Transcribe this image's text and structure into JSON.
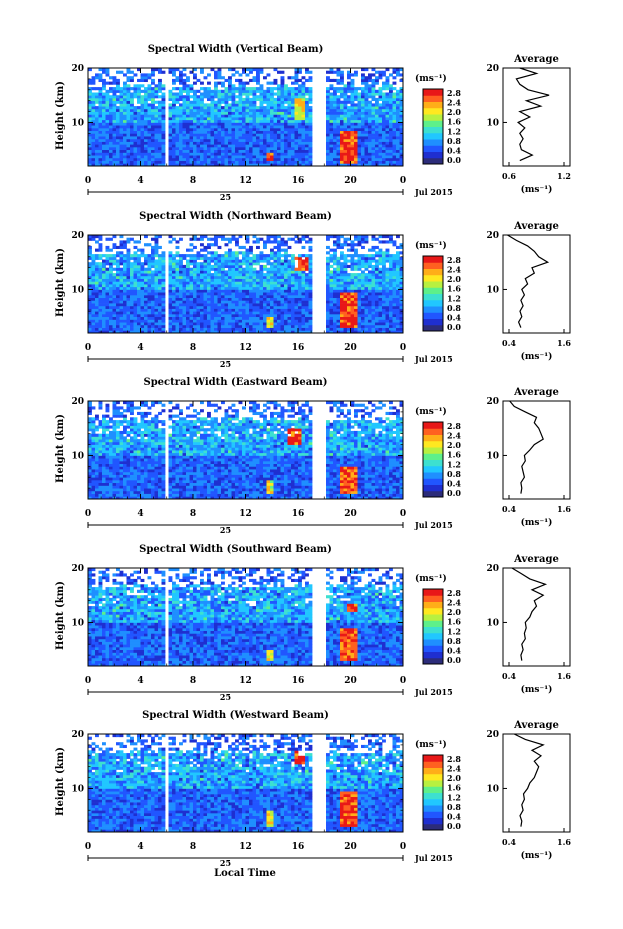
{
  "figure": {
    "xlabel": "Local Time",
    "month_label": "Jul 2015",
    "date_label": "25",
    "unit_label": "(ms⁻¹)",
    "ylabel": "Height (km)",
    "avg_title": "Average",
    "avg_xlabel": "(ms⁻¹)"
  },
  "chart_data": [
    {
      "type": "heatmap",
      "title": "Spectral Width (Vertical Beam)",
      "xlabel": "Local Time",
      "ylabel": "Height (km)",
      "x_ticks": [
        "0",
        "4",
        "8",
        "12",
        "16",
        "20",
        "0"
      ],
      "y_ticks": [
        "20",
        "10"
      ],
      "xlim": [
        0,
        24
      ],
      "ylim": [
        2,
        20
      ],
      "colorbar": {
        "label": "(ms⁻¹)",
        "ticks": [
          "2.8",
          "2.4",
          "2.0",
          "1.6",
          "1.2",
          "0.8",
          "0.4",
          "0.0"
        ],
        "range": [
          0.0,
          2.8
        ]
      },
      "data_gaps_hours": [
        [
          5.8,
          6.1
        ],
        [
          17.2,
          17.5
        ],
        [
          17.7,
          18.0
        ]
      ],
      "peak_regions": [
        {
          "t_start": 19.2,
          "t_end": 20.5,
          "h_start": 2.5,
          "h_end": 8.5,
          "level": "high"
        },
        {
          "t_start": 15.8,
          "t_end": 16.4,
          "h_start": 10.5,
          "h_end": 14.5,
          "level": "medium"
        },
        {
          "t_start": 13.7,
          "t_end": 14.1,
          "h_start": 2.8,
          "h_end": 4.5,
          "level": "high"
        }
      ],
      "average_profile": {
        "title": "Average",
        "xlabel": "(ms⁻¹)",
        "x_ticks": [
          "0.6",
          "1.2"
        ],
        "y_ticks": [
          "20",
          "10"
        ],
        "xlim": [
          0.5,
          1.3
        ],
        "height": [
          3,
          4,
          5,
          6,
          7,
          8,
          9,
          10,
          11,
          12,
          13,
          14,
          15,
          16,
          17,
          18,
          19,
          20
        ],
        "width": [
          0.7,
          0.85,
          0.72,
          0.7,
          0.74,
          0.7,
          0.76,
          0.68,
          0.82,
          0.7,
          0.95,
          0.78,
          1.05,
          0.8,
          0.7,
          0.66,
          0.9,
          0.7
        ]
      }
    },
    {
      "type": "heatmap",
      "title": "Spectral Width (Northward Beam)",
      "xlabel": "Local Time",
      "ylabel": "Height (km)",
      "x_ticks": [
        "0",
        "4",
        "8",
        "12",
        "16",
        "20",
        "0"
      ],
      "y_ticks": [
        "20",
        "10"
      ],
      "xlim": [
        0,
        24
      ],
      "ylim": [
        2,
        20
      ],
      "colorbar": {
        "label": "(ms⁻¹)",
        "ticks": [
          "2.8",
          "2.4",
          "2.0",
          "1.6",
          "1.2",
          "0.8",
          "0.4",
          "0.0"
        ],
        "range": [
          0.0,
          2.8
        ]
      },
      "data_gaps_hours": [
        [
          5.8,
          6.1
        ],
        [
          17.2,
          17.5
        ],
        [
          17.7,
          18.0
        ]
      ],
      "peak_regions": [
        {
          "t_start": 15.8,
          "t_end": 16.8,
          "h_start": 13.5,
          "h_end": 16.0,
          "level": "high"
        },
        {
          "t_start": 19.3,
          "t_end": 20.5,
          "h_start": 3.0,
          "h_end": 9.5,
          "level": "high"
        },
        {
          "t_start": 13.7,
          "t_end": 14.1,
          "h_start": 3.0,
          "h_end": 5.0,
          "level": "medium"
        }
      ],
      "average_profile": {
        "title": "Average",
        "xlabel": "(ms⁻¹)",
        "x_ticks": [
          "0.4",
          "1.6"
        ],
        "y_ticks": [
          "20",
          "10"
        ],
        "xlim": [
          0.3,
          1.8
        ],
        "height": [
          3,
          4,
          5,
          6,
          7,
          8,
          9,
          10,
          11,
          12,
          13,
          14,
          15,
          16,
          17,
          18,
          19,
          20
        ],
        "width": [
          0.7,
          0.65,
          0.72,
          0.68,
          0.75,
          0.7,
          0.78,
          0.72,
          0.85,
          0.8,
          1.0,
          0.95,
          1.3,
          1.1,
          1.0,
          0.85,
          0.6,
          0.4
        ]
      }
    },
    {
      "type": "heatmap",
      "title": "Spectral Width (Eastward Beam)",
      "xlabel": "Local Time",
      "ylabel": "Height (km)",
      "x_ticks": [
        "0",
        "4",
        "8",
        "12",
        "16",
        "20",
        "0"
      ],
      "y_ticks": [
        "20",
        "10"
      ],
      "xlim": [
        0,
        24
      ],
      "ylim": [
        2,
        20
      ],
      "colorbar": {
        "label": "(ms⁻¹)",
        "ticks": [
          "2.8",
          "2.4",
          "2.0",
          "1.6",
          "1.2",
          "0.8",
          "0.4",
          "0.0"
        ],
        "range": [
          0.0,
          2.8
        ]
      },
      "data_gaps_hours": [
        [
          5.8,
          6.1
        ],
        [
          17.2,
          17.5
        ],
        [
          17.7,
          18.0
        ]
      ],
      "peak_regions": [
        {
          "t_start": 15.3,
          "t_end": 16.3,
          "h_start": 12.0,
          "h_end": 15.0,
          "level": "high"
        },
        {
          "t_start": 19.3,
          "t_end": 20.6,
          "h_start": 3.0,
          "h_end": 8.0,
          "level": "high"
        },
        {
          "t_start": 13.7,
          "t_end": 14.2,
          "h_start": 3.0,
          "h_end": 5.5,
          "level": "medium"
        }
      ],
      "average_profile": {
        "title": "Average",
        "xlabel": "(ms⁻¹)",
        "x_ticks": [
          "0.4",
          "1.6"
        ],
        "y_ticks": [
          "20",
          "10"
        ],
        "xlim": [
          0.3,
          1.8
        ],
        "height": [
          3,
          4,
          5,
          6,
          7,
          8,
          9,
          10,
          11,
          12,
          13,
          14,
          15,
          16,
          17,
          18,
          19,
          20
        ],
        "width": [
          0.7,
          0.72,
          0.7,
          0.78,
          0.75,
          0.72,
          0.8,
          0.78,
          0.9,
          1.0,
          1.2,
          1.15,
          1.1,
          1.0,
          1.05,
          0.8,
          0.55,
          0.45
        ]
      }
    },
    {
      "type": "heatmap",
      "title": "Spectral Width (Southward Beam)",
      "xlabel": "Local Time",
      "ylabel": "Height (km)",
      "x_ticks": [
        "0",
        "4",
        "8",
        "12",
        "16",
        "20",
        "0"
      ],
      "y_ticks": [
        "20",
        "10"
      ],
      "xlim": [
        0,
        24
      ],
      "ylim": [
        2,
        20
      ],
      "colorbar": {
        "label": "(ms⁻¹)",
        "ticks": [
          "2.8",
          "2.4",
          "2.0",
          "1.6",
          "1.2",
          "0.8",
          "0.4",
          "0.0"
        ],
        "range": [
          0.0,
          2.8
        ]
      },
      "data_gaps_hours": [
        [
          5.8,
          6.1
        ],
        [
          17.2,
          17.5
        ],
        [
          17.7,
          18.0
        ]
      ],
      "peak_regions": [
        {
          "t_start": 19.6,
          "t_end": 20.4,
          "h_start": 12.0,
          "h_end": 13.5,
          "level": "high"
        },
        {
          "t_start": 19.3,
          "t_end": 20.5,
          "h_start": 3.0,
          "h_end": 9.0,
          "level": "high"
        },
        {
          "t_start": 13.6,
          "t_end": 14.1,
          "h_start": 3.0,
          "h_end": 5.0,
          "level": "medium"
        }
      ],
      "average_profile": {
        "title": "Average",
        "xlabel": "(ms⁻¹)",
        "x_ticks": [
          "0.4",
          "1.6"
        ],
        "y_ticks": [
          "20",
          "10"
        ],
        "xlim": [
          0.3,
          1.8
        ],
        "height": [
          3,
          4,
          5,
          6,
          7,
          8,
          9,
          10,
          11,
          12,
          13,
          14,
          15,
          16,
          17,
          18,
          19,
          20
        ],
        "width": [
          0.72,
          0.7,
          0.75,
          0.72,
          0.8,
          0.78,
          0.82,
          0.8,
          0.9,
          0.95,
          1.05,
          1.0,
          1.2,
          0.95,
          1.25,
          0.9,
          0.7,
          0.5
        ]
      }
    },
    {
      "type": "heatmap",
      "title": "Spectral Width (Westward Beam)",
      "xlabel": "Local Time",
      "ylabel": "Height (km)",
      "x_ticks": [
        "0",
        "4",
        "8",
        "12",
        "16",
        "20",
        "0"
      ],
      "y_ticks": [
        "20",
        "10"
      ],
      "xlim": [
        0,
        24
      ],
      "ylim": [
        2,
        20
      ],
      "colorbar": {
        "label": "(ms⁻¹)",
        "ticks": [
          "2.8",
          "2.4",
          "2.0",
          "1.6",
          "1.2",
          "0.8",
          "0.4",
          "0.0"
        ],
        "range": [
          0.0,
          2.8
        ]
      },
      "data_gaps_hours": [
        [
          5.8,
          6.1
        ],
        [
          17.2,
          17.5
        ],
        [
          17.7,
          18.0
        ]
      ],
      "peak_regions": [
        {
          "t_start": 15.8,
          "t_end": 16.6,
          "h_start": 14.5,
          "h_end": 17.0,
          "level": "high"
        },
        {
          "t_start": 19.3,
          "t_end": 20.5,
          "h_start": 3.0,
          "h_end": 9.5,
          "level": "high"
        },
        {
          "t_start": 13.6,
          "t_end": 14.1,
          "h_start": 3.0,
          "h_end": 6.0,
          "level": "medium"
        }
      ],
      "average_profile": {
        "title": "Average",
        "xlabel": "(ms⁻¹)",
        "x_ticks": [
          "0.4",
          "1.6"
        ],
        "y_ticks": [
          "20",
          "10"
        ],
        "xlim": [
          0.3,
          1.8
        ],
        "height": [
          3,
          4,
          5,
          6,
          7,
          8,
          9,
          10,
          11,
          12,
          13,
          14,
          15,
          16,
          17,
          18,
          19,
          20
        ],
        "width": [
          0.7,
          0.72,
          0.68,
          0.75,
          0.72,
          0.78,
          0.76,
          0.85,
          0.9,
          1.0,
          1.05,
          1.1,
          1.0,
          1.15,
          0.95,
          1.2,
          0.8,
          0.55
        ]
      }
    }
  ],
  "colors": {
    "scale": [
      "#2c2c7a",
      "#1f2fd0",
      "#2156ff",
      "#1f8fff",
      "#21c7ff",
      "#3de0d0",
      "#5ef08a",
      "#b8f040",
      "#ffe820",
      "#ffae18",
      "#ff6020",
      "#e81818"
    ]
  }
}
